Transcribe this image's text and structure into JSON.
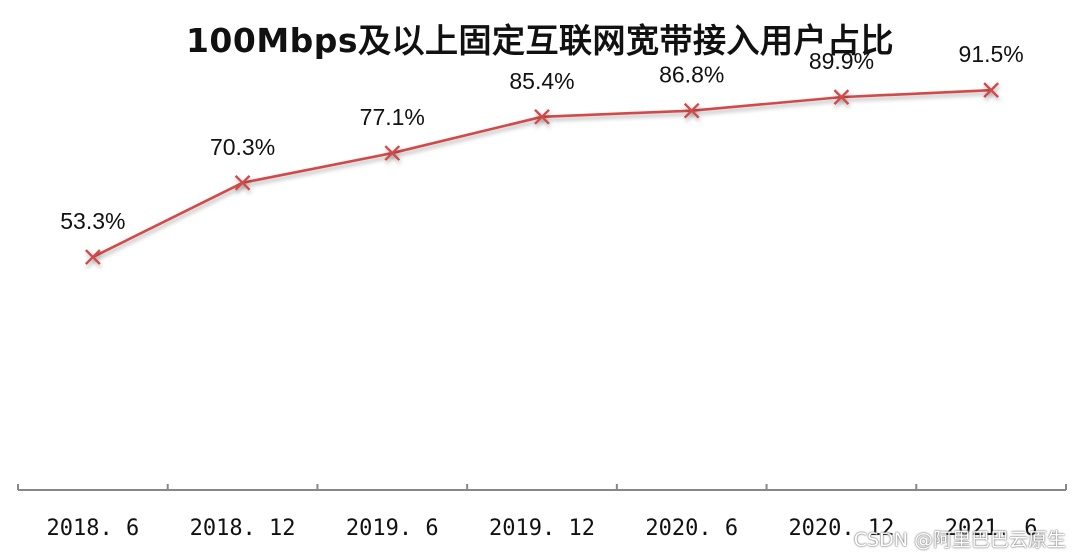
{
  "chart_data": {
    "type": "line",
    "title": "100Mbps及以上固定互联网宽带接入用户占比",
    "categories": [
      "2018.6",
      "2018.12",
      "2019.6",
      "2019.12",
      "2020.6",
      "2020.12",
      "2021.6"
    ],
    "values": [
      53.3,
      70.3,
      77.1,
      85.4,
      86.8,
      89.9,
      91.5
    ],
    "data_labels": [
      "53.3%",
      "70.3%",
      "77.1%",
      "85.4%",
      "86.8%",
      "89.9%",
      "91.5%"
    ],
    "ylim": [
      0,
      100
    ],
    "xlabel": "",
    "ylabel": "",
    "grid": false,
    "y_axis_visible": false,
    "marker": "x",
    "colors": {
      "line": "#d24a4a",
      "axis": "#888888"
    }
  },
  "watermark": "CSDN @阿里巴巴云原生"
}
